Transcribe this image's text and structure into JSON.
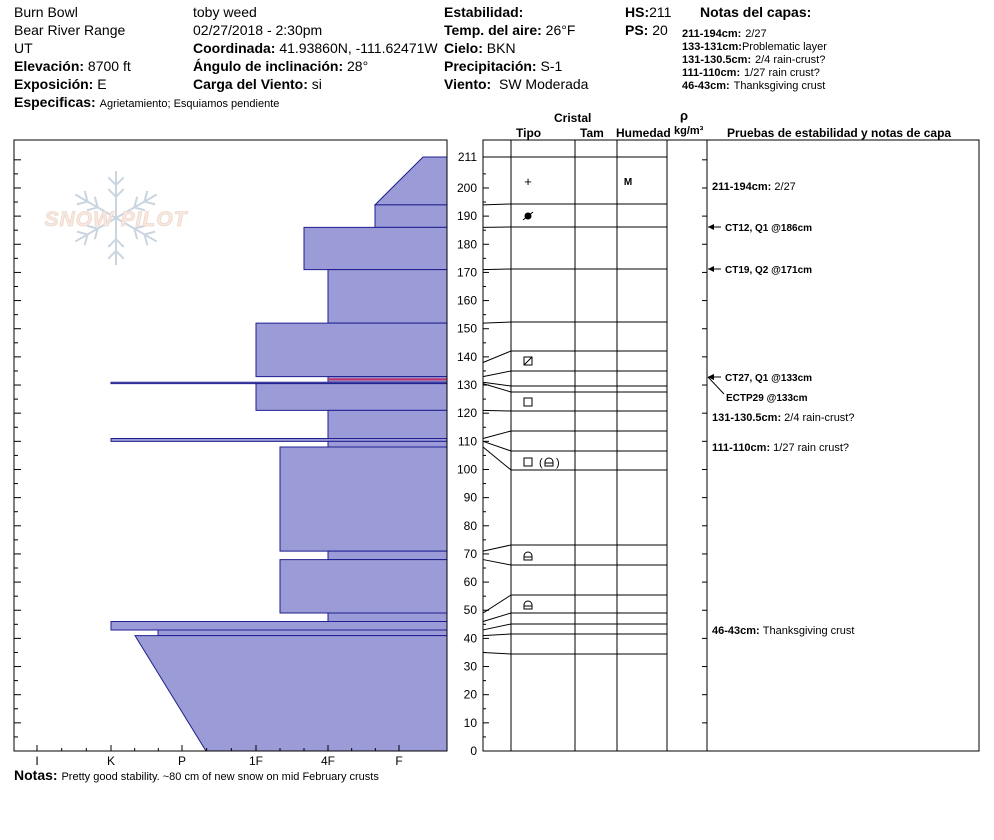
{
  "header": {
    "location": "Burn Bowl",
    "range": "Bear River Range",
    "state": "UT",
    "elevation_label": "Elevación:",
    "elevation_value": "8700 ft",
    "aspect_label": "Exposición:",
    "aspect_value": "E",
    "specifics_label": "Especificas:",
    "specifics_value": "Agrietamiento; Esquiamos pendiente",
    "observer": "toby weed",
    "datetime": "02/27/2018 - 2:30pm",
    "coord_label": "Coordinada:",
    "coord_value": "41.93860N, -111.62471W",
    "slope_label": "Ángulo de inclinación:",
    "slope_value": "28°",
    "wind_load_label": "Carga del Viento:",
    "wind_load_value": "si",
    "stability_label": "Estabilidad:",
    "air_temp_label": "Temp. del aire:",
    "air_temp_value": "26°F",
    "sky_label": "Cielo:",
    "sky_value": "BKN",
    "precip_label": "Precipitación:",
    "precip_value": "S-1",
    "wind_label": "Viento:",
    "wind_value": "SW Moderada",
    "hs_label": "HS:",
    "hs_value": "211",
    "ps_label": "PS:",
    "ps_value": "20",
    "layer_notes_title": "Notas del capas:",
    "layer_notes": [
      {
        "range": "211-194cm:",
        "note": "2/27"
      },
      {
        "range": "133-131cm:",
        "note": "Problematic layer"
      },
      {
        "range": "131-130.5cm:",
        "note": "2/4 rain-crust?"
      },
      {
        "range": "111-110cm:",
        "note": "1/27 rain crust?"
      },
      {
        "range": "46-43cm:",
        "note": "Thanksgiving crust"
      }
    ]
  },
  "watermark": "SNOW PILOT",
  "column_headers": {
    "cristal": "Cristal",
    "tipo": "Tipo",
    "tam": "Tam",
    "humedad": "Humedad",
    "rho": "ρ",
    "density_unit": "kg/m³",
    "tests": "Pruebas de estabilidad y notas de capa"
  },
  "notes_label": "Notas:",
  "notes_value": "Pretty good stability.  ~80 cm of new snow on mid February crusts",
  "colors": {
    "layer_fill": "#9b9bd7",
    "layer_stroke": "#1f1f8f",
    "highlight": "#c0306a",
    "grid": "#000000"
  },
  "chart_data": {
    "type": "hardness-profile",
    "x_axis": {
      "categories": [
        "I",
        "K",
        "P",
        "1F",
        "4F",
        "F"
      ],
      "direction": "reversed (F at right = softest)"
    },
    "y_axis": {
      "unit": "cm",
      "range": [
        0,
        211
      ],
      "ticks": [
        0,
        10,
        20,
        30,
        40,
        50,
        60,
        70,
        80,
        90,
        100,
        110,
        120,
        130,
        140,
        150,
        160,
        170,
        180,
        190,
        200,
        211
      ]
    },
    "hardness_index": {
      "F": 1,
      "4F": 2,
      "1F": 3,
      "P": 4,
      "K": 5,
      "I": 6
    },
    "layers": [
      {
        "top": 211,
        "bottom": 194,
        "hardness_top": "F-",
        "hardness_bottom": "F+"
      },
      {
        "top": 194,
        "bottom": 186,
        "hardness": "F+"
      },
      {
        "top": 186,
        "bottom": 171,
        "hardness": "4F+"
      },
      {
        "top": 171,
        "bottom": 152,
        "hardness": "4F"
      },
      {
        "top": 152,
        "bottom": 133,
        "hardness": "1F"
      },
      {
        "top": 133,
        "bottom": 131,
        "hardness": "4F",
        "highlight": true
      },
      {
        "top": 131,
        "bottom": 130.5,
        "hardness": "K"
      },
      {
        "top": 130.5,
        "bottom": 121,
        "hardness": "1F"
      },
      {
        "top": 121,
        "bottom": 111,
        "hardness": "4F"
      },
      {
        "top": 111,
        "bottom": 110,
        "hardness": "K"
      },
      {
        "top": 110,
        "bottom": 108,
        "hardness": "4F"
      },
      {
        "top": 108,
        "bottom": 71,
        "hardness": "1F-"
      },
      {
        "top": 71,
        "bottom": 68,
        "hardness": "4F"
      },
      {
        "top": 68,
        "bottom": 49,
        "hardness": "1F-"
      },
      {
        "top": 49,
        "bottom": 46,
        "hardness": "4F"
      },
      {
        "top": 46,
        "bottom": 43,
        "hardness": "K"
      },
      {
        "top": 43,
        "bottom": 41,
        "hardness": "P+"
      },
      {
        "top": 41,
        "bottom": 0,
        "hardness_top": "K-",
        "hardness_bottom": "P-"
      }
    ],
    "layer_boundaries": [
      211,
      194,
      186,
      171,
      152,
      141,
      135,
      130.5,
      128,
      121,
      113,
      108,
      101,
      73,
      67,
      55,
      48,
      43,
      41,
      35
    ],
    "crystal_symbols": [
      {
        "height": 203,
        "symbol": "+"
      },
      {
        "height": 190,
        "symbol": "rounded-faceted"
      },
      {
        "height": 138,
        "symbol": "faceted-square-slash"
      },
      {
        "height": 124,
        "symbol": "faceted-square"
      },
      {
        "height": 103,
        "symbol": "faceted-square",
        "extra": "(rounded-facet)"
      },
      {
        "height": 70,
        "symbol": "rounded-facet"
      },
      {
        "height": 52,
        "symbol": "rounded-facet"
      }
    ],
    "moisture": [
      {
        "height": 203,
        "value": "M"
      }
    ],
    "stability_tests": [
      {
        "label": "CT12, Q1 @186cm",
        "height": 186
      },
      {
        "label": "CT19, Q2 @171cm",
        "height": 171
      },
      {
        "label": "CT27, Q1 @133cm",
        "height": 133
      },
      {
        "label": "ECTP29 @133cm",
        "height": 133
      }
    ],
    "layer_comments": [
      {
        "range": "211-194cm:",
        "note": "2/27",
        "height": 202.5
      },
      {
        "range": "131-130.5cm:",
        "note": "2/4 rain-crust?",
        "height": 130.75
      },
      {
        "range": "111-110cm:",
        "note": "1/27 rain crust?",
        "height": 110.5
      },
      {
        "range": "46-43cm:",
        "note": "Thanksgiving crust",
        "height": 44.5
      }
    ]
  }
}
